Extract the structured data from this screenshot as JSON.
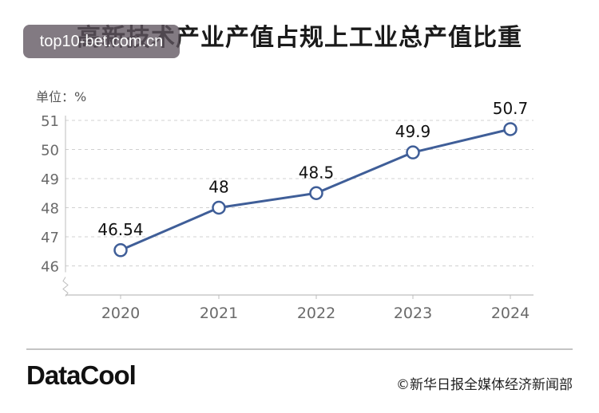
{
  "watermark": "top10-bet.com.cn",
  "footer": {
    "brand": "DataCool",
    "source": "©新华日报全媒体经济新闻部"
  },
  "colors": {
    "line": "#3f5e98",
    "grid": "#d0d0d0",
    "tick": "#6a6a6a",
    "label": "#111111"
  },
  "chart_data": {
    "type": "line",
    "title": "高新技术产业产值占规上工业总产值比重",
    "ylabel": "单位：%",
    "categories": [
      "2020",
      "2021",
      "2022",
      "2023",
      "2024"
    ],
    "values": [
      46.54,
      48,
      48.5,
      49.9,
      50.7
    ],
    "data_labels": [
      "46.54",
      "48",
      "48.5",
      "49.9",
      "50.7"
    ],
    "yticks": [
      "46",
      "47",
      "48",
      "49",
      "50",
      "51"
    ],
    "ylim": [
      46,
      51
    ],
    "grid": true,
    "axis_break": true
  }
}
